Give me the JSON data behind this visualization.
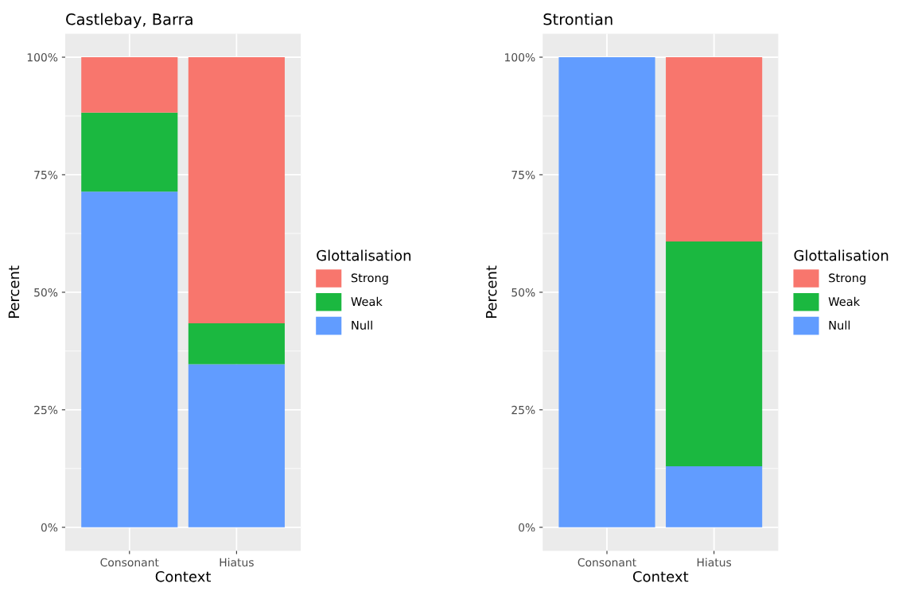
{
  "chart_data": [
    {
      "type": "bar",
      "stacked": true,
      "title": "Castlebay, Barra",
      "xlabel": "Context",
      "ylabel": "Percent",
      "legend_title": "Glottalisation",
      "legend": "right",
      "grid": true,
      "categories": [
        "Consonant",
        "Hiatus"
      ],
      "series": [
        {
          "name": "Null",
          "color": "#619cff",
          "values": [
            71.4,
            34.7
          ]
        },
        {
          "name": "Weak",
          "color": "#1bb840",
          "values": [
            16.8,
            8.7
          ]
        },
        {
          "name": "Strong",
          "color": "#f8766d",
          "values": [
            11.8,
            56.6
          ]
        }
      ],
      "ylim": [
        -5,
        105
      ],
      "yticks": [
        {
          "value": 0,
          "label": "0%"
        },
        {
          "value": 25,
          "label": "25%"
        },
        {
          "value": 50,
          "label": "50%"
        },
        {
          "value": 75,
          "label": "75%"
        },
        {
          "value": 100,
          "label": "100%"
        }
      ]
    },
    {
      "type": "bar",
      "stacked": true,
      "title": "Strontian",
      "xlabel": "Context",
      "ylabel": "Percent",
      "legend_title": "Glottalisation",
      "legend": "right",
      "grid": true,
      "categories": [
        "Consonant",
        "Hiatus"
      ],
      "series": [
        {
          "name": "Null",
          "color": "#619cff",
          "values": [
            100,
            13.0
          ]
        },
        {
          "name": "Weak",
          "color": "#1bb840",
          "values": [
            0,
            47.8
          ]
        },
        {
          "name": "Strong",
          "color": "#f8766d",
          "values": [
            0,
            39.2
          ]
        }
      ],
      "ylim": [
        -5,
        105
      ],
      "yticks": [
        {
          "value": 0,
          "label": "0%"
        },
        {
          "value": 25,
          "label": "25%"
        },
        {
          "value": 50,
          "label": "50%"
        },
        {
          "value": 75,
          "label": "75%"
        },
        {
          "value": 100,
          "label": "100%"
        }
      ]
    }
  ]
}
